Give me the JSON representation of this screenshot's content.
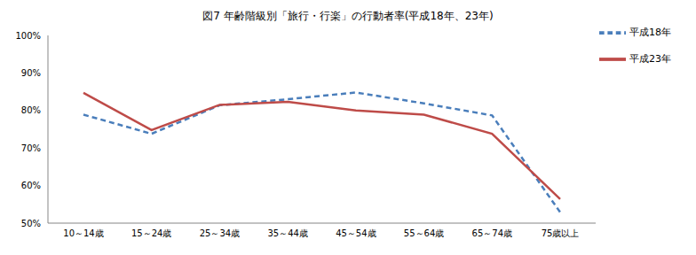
{
  "chart_data": {
    "type": "line",
    "title": "図7 年齢階級別「旅行・行楽」の行動者率(平成18年、23年)",
    "categories": [
      "10～14歳",
      "15～24歳",
      "25～34歳",
      "35～44歳",
      "45～54歳",
      "55～64歳",
      "65～74歳",
      "75歳以上"
    ],
    "series": [
      {
        "name": "平成18年",
        "color": "#4a7ebb",
        "line_style": "dashed",
        "values": [
          78.9,
          73.8,
          81.4,
          83.0,
          84.8,
          81.9,
          78.7,
          52.9
        ]
      },
      {
        "name": "平成23年",
        "color": "#be4b48",
        "line_style": "solid",
        "values": [
          84.7,
          74.8,
          81.5,
          82.3,
          80.0,
          78.9,
          73.8,
          56.4
        ]
      }
    ],
    "ylim": [
      50,
      100
    ],
    "yticks": [
      {
        "value": 50,
        "label": "50%"
      },
      {
        "value": 60,
        "label": "60%"
      },
      {
        "value": 70,
        "label": "70%"
      },
      {
        "value": 80,
        "label": "80%"
      },
      {
        "value": 90,
        "label": "90%"
      },
      {
        "value": 100,
        "label": "100%"
      }
    ],
    "grid": false,
    "legend": "upper right"
  }
}
